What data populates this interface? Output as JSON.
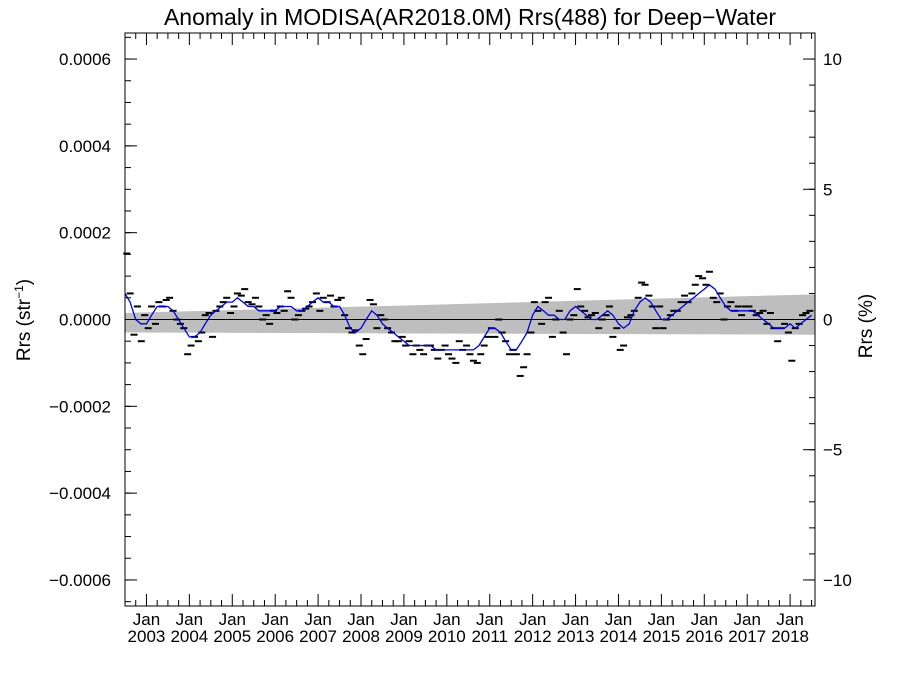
{
  "chart_data": {
    "type": "line",
    "title": "Anomaly in MODISA(AR2018.0M) Rrs(488) for Deep−Water",
    "ylabel_left_text": "Rrs (str",
    "ylabel_left_sup": "−1",
    "ylabel_left_close": ")",
    "ylabel_right": "Rrs (%)",
    "ylim_left": [
      -0.00066,
      0.00066
    ],
    "ylim_right": [
      -11.0,
      11.0
    ],
    "xlim": [
      2002.5,
      2018.58
    ],
    "y_ticks_left": [
      {
        "value": 0.0006,
        "label": "0.0006"
      },
      {
        "value": 0.0004,
        "label": "0.0004"
      },
      {
        "value": 0.0002,
        "label": "0.0002"
      },
      {
        "value": 0.0,
        "label": "0.0000"
      },
      {
        "value": -0.0002,
        "label": "−0.0002"
      },
      {
        "value": -0.0004,
        "label": "−0.0004"
      },
      {
        "value": -0.0006,
        "label": "−0.0006"
      }
    ],
    "y_ticks_right": [
      {
        "value": 10,
        "label": "10"
      },
      {
        "value": 5,
        "label": "5"
      },
      {
        "value": 0,
        "label": "0"
      },
      {
        "value": -5,
        "label": "−5"
      },
      {
        "value": -10,
        "label": "−10"
      }
    ],
    "x_ticks": [
      {
        "value": 2003,
        "month": "Jan",
        "year": "2003"
      },
      {
        "value": 2004,
        "month": "Jan",
        "year": "2004"
      },
      {
        "value": 2005,
        "month": "Jan",
        "year": "2005"
      },
      {
        "value": 2006,
        "month": "Jan",
        "year": "2006"
      },
      {
        "value": 2007,
        "month": "Jan",
        "year": "2007"
      },
      {
        "value": 2008,
        "month": "Jan",
        "year": "2008"
      },
      {
        "value": 2009,
        "month": "Jan",
        "year": "2009"
      },
      {
        "value": 2010,
        "month": "Jan",
        "year": "2010"
      },
      {
        "value": 2011,
        "month": "Jan",
        "year": "2011"
      },
      {
        "value": 2012,
        "month": "Jan",
        "year": "2012"
      },
      {
        "value": 2013,
        "month": "Jan",
        "year": "2013"
      },
      {
        "value": 2014,
        "month": "Jan",
        "year": "2014"
      },
      {
        "value": 2015,
        "month": "Jan",
        "year": "2015"
      },
      {
        "value": 2016,
        "month": "Jan",
        "year": "2016"
      },
      {
        "value": 2017,
        "month": "Jan",
        "year": "2017"
      },
      {
        "value": 2018,
        "month": "Jan",
        "year": "2018"
      }
    ],
    "zero_line": 0.0,
    "trend_band": {
      "lower": [
        [
          2002.5,
          -3e-05
        ],
        [
          2018.58,
          -3.5e-05
        ]
      ],
      "upper": [
        [
          2002.5,
          1.5e-05
        ],
        [
          2018.58,
          5.8e-05
        ]
      ]
    },
    "monthly_points": [
      [
        2002.54,
        0.000152
      ],
      [
        2002.62,
        6e-05
      ],
      [
        2002.71,
        -3.5e-05
      ],
      [
        2002.79,
        3e-05
      ],
      [
        2002.88,
        -5e-05
      ],
      [
        2002.96,
        1e-05
      ],
      [
        2003.04,
        -2e-05
      ],
      [
        2003.12,
        3e-05
      ],
      [
        2003.21,
        -1e-05
      ],
      [
        2003.29,
        4e-05
      ],
      [
        2003.37,
        3e-05
      ],
      [
        2003.46,
        4.5e-05
      ],
      [
        2003.54,
        5e-05
      ],
      [
        2003.62,
        2e-05
      ],
      [
        2003.71,
        0.0
      ],
      [
        2003.79,
        -1e-05
      ],
      [
        2003.87,
        -2e-05
      ],
      [
        2003.96,
        -8e-05
      ],
      [
        2004.04,
        -6e-05
      ],
      [
        2004.12,
        -4e-05
      ],
      [
        2004.21,
        -5e-05
      ],
      [
        2004.29,
        -3e-05
      ],
      [
        2004.37,
        1e-05
      ],
      [
        2004.46,
        1.5e-05
      ],
      [
        2004.54,
        -4e-05
      ],
      [
        2004.62,
        2e-05
      ],
      [
        2004.71,
        3e-05
      ],
      [
        2004.79,
        4e-05
      ],
      [
        2004.87,
        5e-05
      ],
      [
        2004.96,
        1.5e-05
      ],
      [
        2005.04,
        3e-05
      ],
      [
        2005.12,
        6e-05
      ],
      [
        2005.21,
        5.5e-05
      ],
      [
        2005.29,
        7e-05
      ],
      [
        2005.37,
        4e-05
      ],
      [
        2005.46,
        3.5e-05
      ],
      [
        2005.54,
        5e-05
      ],
      [
        2005.62,
        3e-05
      ],
      [
        2005.71,
        0.0
      ],
      [
        2005.79,
        1e-05
      ],
      [
        2005.87,
        -1e-05
      ],
      [
        2005.96,
        2e-05
      ],
      [
        2006.04,
        1.5e-05
      ],
      [
        2006.12,
        3e-05
      ],
      [
        2006.21,
        2e-05
      ],
      [
        2006.29,
        6.5e-05
      ],
      [
        2006.37,
        5e-05
      ],
      [
        2006.46,
        0.0
      ],
      [
        2006.54,
        1e-05
      ],
      [
        2006.62,
        2e-05
      ],
      [
        2006.71,
        2.5e-05
      ],
      [
        2006.79,
        3e-05
      ],
      [
        2006.87,
        4e-05
      ],
      [
        2006.96,
        6e-05
      ],
      [
        2007.04,
        2e-05
      ],
      [
        2007.12,
        5e-05
      ],
      [
        2007.21,
        4e-05
      ],
      [
        2007.29,
        5.5e-05
      ],
      [
        2007.37,
        3e-05
      ],
      [
        2007.46,
        4.5e-05
      ],
      [
        2007.54,
        5e-05
      ],
      [
        2007.62,
        1e-05
      ],
      [
        2007.71,
        -2e-05
      ],
      [
        2007.79,
        -3e-05
      ],
      [
        2007.87,
        -2.5e-05
      ],
      [
        2007.96,
        -6e-05
      ],
      [
        2008.04,
        -8e-05
      ],
      [
        2008.12,
        -4.5e-05
      ],
      [
        2008.21,
        4.5e-05
      ],
      [
        2008.29,
        3.5e-05
      ],
      [
        2008.37,
        -2e-05
      ],
      [
        2008.46,
        1e-05
      ],
      [
        2008.54,
        0.0
      ],
      [
        2008.62,
        -2e-05
      ],
      [
        2008.71,
        -3e-05
      ],
      [
        2008.79,
        -5e-05
      ],
      [
        2008.87,
        -5e-05
      ],
      [
        2008.96,
        -4e-05
      ],
      [
        2009.04,
        -6e-05
      ],
      [
        2009.12,
        -5e-05
      ],
      [
        2009.21,
        -8e-05
      ],
      [
        2009.29,
        -6e-05
      ],
      [
        2009.37,
        -7e-05
      ],
      [
        2009.46,
        -8e-05
      ],
      [
        2009.54,
        -6e-05
      ],
      [
        2009.62,
        -6e-05
      ],
      [
        2009.71,
        -7e-05
      ],
      [
        2009.79,
        -9e-05
      ],
      [
        2009.87,
        -7e-05
      ],
      [
        2009.96,
        -6e-05
      ],
      [
        2010.04,
        -8e-05
      ],
      [
        2010.12,
        -9e-05
      ],
      [
        2010.21,
        -0.0001
      ],
      [
        2010.29,
        -5e-05
      ],
      [
        2010.37,
        -7e-05
      ],
      [
        2010.46,
        -6e-05
      ],
      [
        2010.54,
        -8e-05
      ],
      [
        2010.62,
        -9.5e-05
      ],
      [
        2010.71,
        -0.0001
      ],
      [
        2010.79,
        -8e-05
      ],
      [
        2010.87,
        -6e-05
      ],
      [
        2010.96,
        -4e-05
      ],
      [
        2011.04,
        -2e-05
      ],
      [
        2011.12,
        -4e-05
      ],
      [
        2011.21,
        0.0
      ],
      [
        2011.29,
        -3e-05
      ],
      [
        2011.37,
        -5e-05
      ],
      [
        2011.46,
        -8e-05
      ],
      [
        2011.54,
        -7e-05
      ],
      [
        2011.62,
        -8e-05
      ],
      [
        2011.71,
        -0.00013
      ],
      [
        2011.79,
        -0.00011
      ],
      [
        2011.87,
        -8e-05
      ],
      [
        2011.96,
        -3e-05
      ],
      [
        2012.04,
        4e-05
      ],
      [
        2012.12,
        2e-05
      ],
      [
        2012.21,
        -1e-05
      ],
      [
        2012.29,
        4e-05
      ],
      [
        2012.37,
        5e-05
      ],
      [
        2012.46,
        -4e-05
      ],
      [
        2012.54,
        0.0
      ],
      [
        2012.62,
        2e-05
      ],
      [
        2012.71,
        -3e-05
      ],
      [
        2012.79,
        -8e-05
      ],
      [
        2012.87,
        0.0
      ],
      [
        2012.96,
        1e-05
      ],
      [
        2013.04,
        7e-05
      ],
      [
        2013.12,
        3e-05
      ],
      [
        2013.21,
        2e-05
      ],
      [
        2013.29,
        5e-06
      ],
      [
        2013.37,
        1e-05
      ],
      [
        2013.46,
        1.5e-05
      ],
      [
        2013.54,
        -2e-05
      ],
      [
        2013.62,
        0.0
      ],
      [
        2013.71,
        1e-05
      ],
      [
        2013.79,
        3e-05
      ],
      [
        2013.87,
        -4e-05
      ],
      [
        2013.96,
        -2e-05
      ],
      [
        2014.04,
        -7e-05
      ],
      [
        2014.12,
        -6e-05
      ],
      [
        2014.21,
        5e-06
      ],
      [
        2014.29,
        1e-05
      ],
      [
        2014.37,
        2e-05
      ],
      [
        2014.46,
        5e-05
      ],
      [
        2014.54,
        8.5e-05
      ],
      [
        2014.62,
        8e-05
      ],
      [
        2014.71,
        5.5e-05
      ],
      [
        2014.79,
        3e-05
      ],
      [
        2014.87,
        -2e-05
      ],
      [
        2014.96,
        3e-05
      ],
      [
        2015.04,
        -2e-05
      ],
      [
        2015.12,
        0.0
      ],
      [
        2015.21,
        1e-05
      ],
      [
        2015.29,
        2e-05
      ],
      [
        2015.37,
        2e-05
      ],
      [
        2015.46,
        4e-05
      ],
      [
        2015.54,
        5.5e-05
      ],
      [
        2015.62,
        4e-05
      ],
      [
        2015.71,
        6e-05
      ],
      [
        2015.79,
        8e-05
      ],
      [
        2015.87,
        0.0001
      ],
      [
        2015.96,
        9.5e-05
      ],
      [
        2016.04,
        8e-05
      ],
      [
        2016.12,
        0.00011
      ],
      [
        2016.21,
        5e-05
      ],
      [
        2016.29,
        4e-05
      ],
      [
        2016.37,
        6e-05
      ],
      [
        2016.46,
        0.0
      ],
      [
        2016.54,
        3e-05
      ],
      [
        2016.62,
        4e-05
      ],
      [
        2016.71,
        2e-05
      ],
      [
        2016.79,
        3e-05
      ],
      [
        2016.87,
        1e-05
      ],
      [
        2016.96,
        3e-05
      ],
      [
        2017.04,
        3e-05
      ],
      [
        2017.12,
        2e-05
      ],
      [
        2017.21,
        1e-05
      ],
      [
        2017.29,
        1.5e-05
      ],
      [
        2017.37,
        2e-05
      ],
      [
        2017.46,
        -1e-05
      ],
      [
        2017.54,
        1.5e-05
      ],
      [
        2017.62,
        -2e-05
      ],
      [
        2017.71,
        -5e-05
      ],
      [
        2017.79,
        -2e-05
      ],
      [
        2017.87,
        -1e-05
      ],
      [
        2017.96,
        -3e-05
      ],
      [
        2018.04,
        -9.5e-05
      ],
      [
        2018.12,
        -2e-05
      ],
      [
        2018.21,
        -1e-05
      ],
      [
        2018.29,
        1e-05
      ],
      [
        2018.37,
        1.5e-05
      ],
      [
        2018.46,
        2e-05
      ]
    ],
    "smoothed_line": [
      [
        2002.5,
        6e-05
      ],
      [
        2002.62,
        4e-05
      ],
      [
        2002.75,
        0.0
      ],
      [
        2002.87,
        -1e-05
      ],
      [
        2003.0,
        -1e-05
      ],
      [
        2003.12,
        1e-05
      ],
      [
        2003.25,
        3e-05
      ],
      [
        2003.37,
        3e-05
      ],
      [
        2003.5,
        3e-05
      ],
      [
        2003.62,
        2e-05
      ],
      [
        2003.75,
        0.0
      ],
      [
        2003.87,
        -2e-05
      ],
      [
        2004.0,
        -4e-05
      ],
      [
        2004.12,
        -4e-05
      ],
      [
        2004.25,
        -3e-05
      ],
      [
        2004.37,
        -1e-05
      ],
      [
        2004.5,
        1e-05
      ],
      [
        2004.62,
        2e-05
      ],
      [
        2004.75,
        3e-05
      ],
      [
        2004.87,
        4e-05
      ],
      [
        2005.0,
        4e-05
      ],
      [
        2005.12,
        5e-05
      ],
      [
        2005.25,
        4e-05
      ],
      [
        2005.37,
        3e-05
      ],
      [
        2005.5,
        3e-05
      ],
      [
        2005.62,
        2e-05
      ],
      [
        2005.75,
        2e-05
      ],
      [
        2005.87,
        2e-05
      ],
      [
        2006.0,
        2e-05
      ],
      [
        2006.12,
        3e-05
      ],
      [
        2006.25,
        3e-05
      ],
      [
        2006.37,
        3e-05
      ],
      [
        2006.5,
        2e-05
      ],
      [
        2006.62,
        2e-05
      ],
      [
        2006.75,
        3e-05
      ],
      [
        2006.87,
        4e-05
      ],
      [
        2007.0,
        5e-05
      ],
      [
        2007.12,
        4e-05
      ],
      [
        2007.25,
        4e-05
      ],
      [
        2007.37,
        3e-05
      ],
      [
        2007.5,
        3e-05
      ],
      [
        2007.62,
        1e-05
      ],
      [
        2007.75,
        -2e-05
      ],
      [
        2007.87,
        -3e-05
      ],
      [
        2008.0,
        -2e-05
      ],
      [
        2008.12,
        0.0
      ],
      [
        2008.25,
        2e-05
      ],
      [
        2008.37,
        1e-05
      ],
      [
        2008.5,
        -1e-05
      ],
      [
        2008.62,
        -2e-05
      ],
      [
        2008.75,
        -3e-05
      ],
      [
        2008.87,
        -4e-05
      ],
      [
        2009.0,
        -5e-05
      ],
      [
        2009.12,
        -6e-05
      ],
      [
        2009.25,
        -6e-05
      ],
      [
        2009.37,
        -6e-05
      ],
      [
        2009.5,
        -6e-05
      ],
      [
        2009.62,
        -6e-05
      ],
      [
        2009.75,
        -7e-05
      ],
      [
        2009.87,
        -7e-05
      ],
      [
        2010.0,
        -7e-05
      ],
      [
        2010.12,
        -7e-05
      ],
      [
        2010.25,
        -7e-05
      ],
      [
        2010.37,
        -7e-05
      ],
      [
        2010.5,
        -7e-05
      ],
      [
        2010.62,
        -7e-05
      ],
      [
        2010.75,
        -6e-05
      ],
      [
        2010.87,
        -4e-05
      ],
      [
        2011.0,
        -2e-05
      ],
      [
        2011.12,
        -2e-05
      ],
      [
        2011.25,
        -3e-05
      ],
      [
        2011.37,
        -5e-05
      ],
      [
        2011.5,
        -7e-05
      ],
      [
        2011.62,
        -7e-05
      ],
      [
        2011.75,
        -5e-05
      ],
      [
        2011.87,
        -3e-05
      ],
      [
        2012.0,
        1e-05
      ],
      [
        2012.12,
        3e-05
      ],
      [
        2012.25,
        2e-05
      ],
      [
        2012.37,
        1e-05
      ],
      [
        2012.5,
        1e-05
      ],
      [
        2012.62,
        0.0
      ],
      [
        2012.75,
        0.0
      ],
      [
        2012.87,
        2e-05
      ],
      [
        2013.0,
        3e-05
      ],
      [
        2013.12,
        2e-05
      ],
      [
        2013.25,
        1e-05
      ],
      [
        2013.37,
        0.0
      ],
      [
        2013.5,
        0.0
      ],
      [
        2013.62,
        1e-05
      ],
      [
        2013.75,
        2e-05
      ],
      [
        2013.87,
        1e-05
      ],
      [
        2014.0,
        -1e-05
      ],
      [
        2014.12,
        -2e-05
      ],
      [
        2014.25,
        -1e-05
      ],
      [
        2014.37,
        2e-05
      ],
      [
        2014.5,
        4e-05
      ],
      [
        2014.62,
        5e-05
      ],
      [
        2014.75,
        4e-05
      ],
      [
        2014.87,
        2e-05
      ],
      [
        2015.0,
        0.0
      ],
      [
        2015.12,
        0.0
      ],
      [
        2015.25,
        1e-05
      ],
      [
        2015.37,
        2e-05
      ],
      [
        2015.5,
        3e-05
      ],
      [
        2015.62,
        4e-05
      ],
      [
        2015.75,
        5e-05
      ],
      [
        2015.87,
        6e-05
      ],
      [
        2016.0,
        7e-05
      ],
      [
        2016.12,
        8e-05
      ],
      [
        2016.25,
        7e-05
      ],
      [
        2016.37,
        5e-05
      ],
      [
        2016.5,
        3e-05
      ],
      [
        2016.62,
        2e-05
      ],
      [
        2016.75,
        2e-05
      ],
      [
        2016.87,
        2e-05
      ],
      [
        2017.0,
        2e-05
      ],
      [
        2017.12,
        2e-05
      ],
      [
        2017.25,
        1e-05
      ],
      [
        2017.37,
        0.0
      ],
      [
        2017.5,
        -1e-05
      ],
      [
        2017.62,
        -2e-05
      ],
      [
        2017.75,
        -2e-05
      ],
      [
        2017.87,
        -2e-05
      ],
      [
        2018.0,
        -1e-05
      ],
      [
        2018.12,
        -2e-05
      ],
      [
        2018.25,
        -1e-05
      ],
      [
        2018.37,
        0.0
      ],
      [
        2018.5,
        1e-05
      ]
    ],
    "colors": {
      "smoothed_line": "#0000dd",
      "points": "#000000",
      "trend_band": "#bebebe",
      "zero_line": "#000000",
      "axes": "#000000"
    }
  }
}
